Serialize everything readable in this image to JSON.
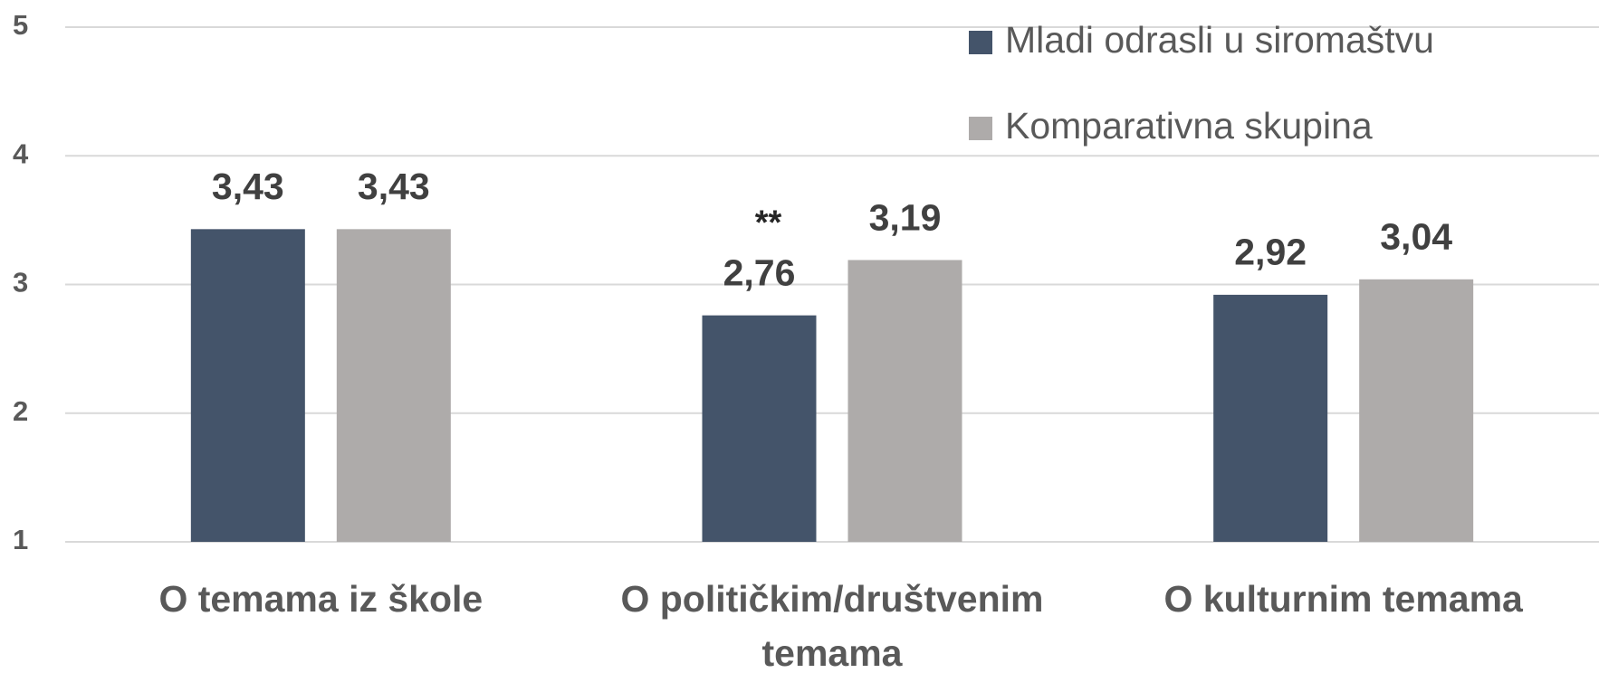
{
  "chart_data": {
    "type": "bar",
    "categories": [
      "O temama iz škole",
      "O političkim/društvenim temama",
      "O kulturnim temama"
    ],
    "series": [
      {
        "name": "Mladi odrasli u siromaštvu",
        "color": "#44546a",
        "values": [
          3.43,
          2.76,
          2.92
        ],
        "value_labels": [
          "3,43",
          "2,76",
          "2,92"
        ]
      },
      {
        "name": "Komparativna skupina",
        "color": "#aeabaa",
        "values": [
          3.43,
          3.19,
          3.04
        ],
        "value_labels": [
          "3,43",
          "3,19",
          "3,04"
        ]
      }
    ],
    "annotations": [
      {
        "text": "**",
        "series": 0,
        "category": 1
      }
    ],
    "ylim": [
      1,
      5
    ],
    "yticks": [
      1,
      2,
      3,
      4,
      5
    ],
    "grid": true,
    "legend": "top-right"
  }
}
